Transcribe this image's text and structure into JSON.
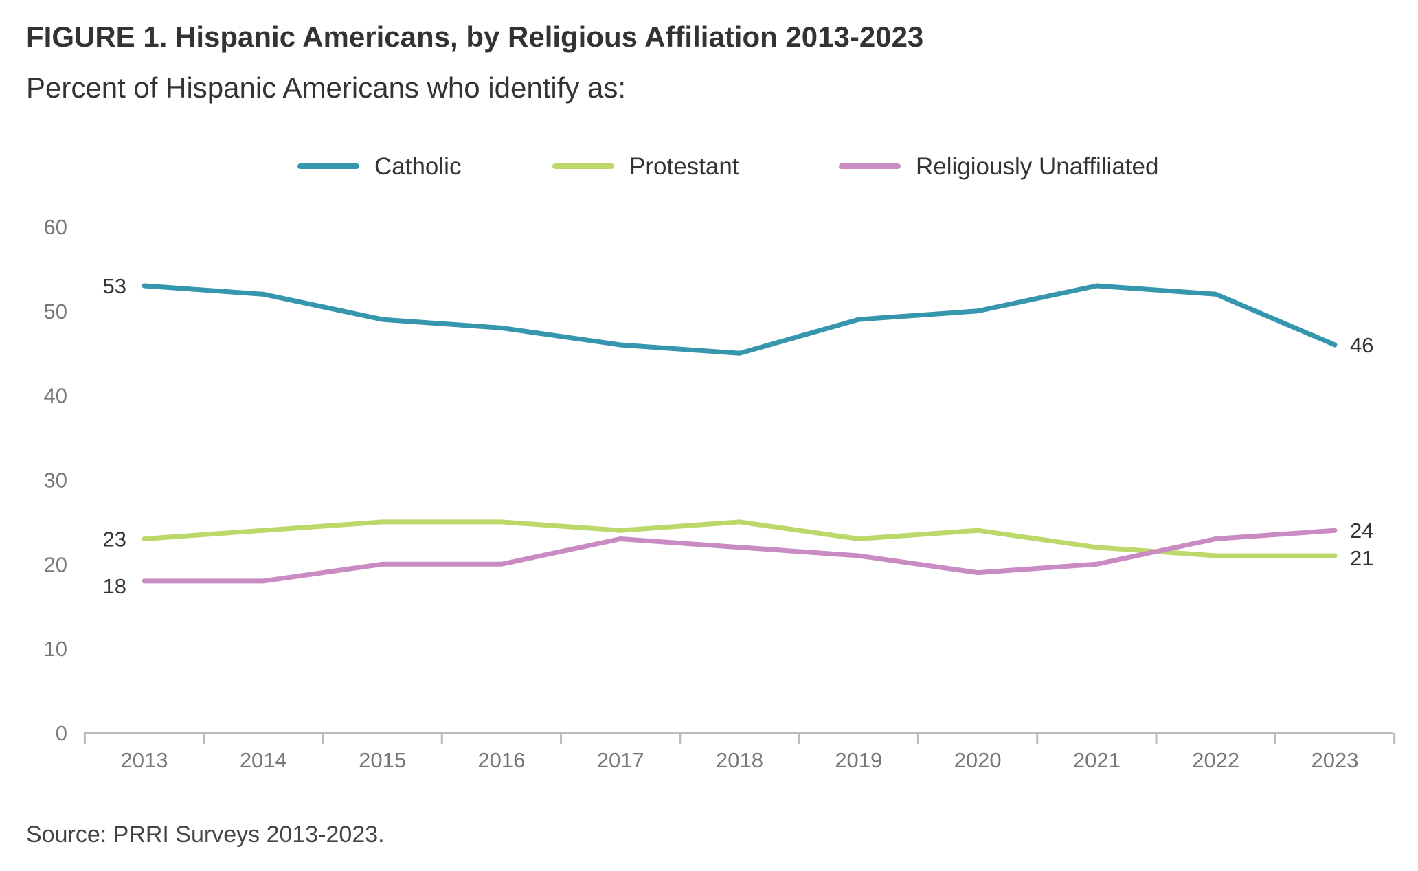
{
  "title": "FIGURE 1. Hispanic Americans, by Religious Affiliation 2013-2023",
  "subtitle": "Percent of Hispanic Americans who identify as:",
  "source": "Source: PRRI Surveys 2013-2023.",
  "chart_data": {
    "type": "line",
    "x": [
      "2013",
      "2014",
      "2015",
      "2016",
      "2017",
      "2018",
      "2019",
      "2020",
      "2021",
      "2022",
      "2023"
    ],
    "ylim": [
      0,
      60
    ],
    "yticks": [
      0,
      10,
      20,
      30,
      40,
      50,
      60
    ],
    "grid": false,
    "legend_position": "top-center",
    "series": [
      {
        "name": "Catholic",
        "color": "#3596ad",
        "values": [
          53,
          52,
          49,
          48,
          46,
          45,
          49,
          50,
          53,
          52,
          46
        ],
        "start_label": "53",
        "end_label": "46"
      },
      {
        "name": "Protestant",
        "color": "#bcd86a",
        "values": [
          23,
          24,
          25,
          25,
          24,
          25,
          23,
          24,
          22,
          21,
          21
        ],
        "start_label": "23",
        "end_label": "21"
      },
      {
        "name": "Religiously Unaffiliated",
        "color": "#c98bc2",
        "values": [
          18,
          18,
          20,
          20,
          23,
          22,
          21,
          19,
          20,
          23,
          24
        ],
        "start_label": "18",
        "end_label": "24"
      }
    ]
  }
}
